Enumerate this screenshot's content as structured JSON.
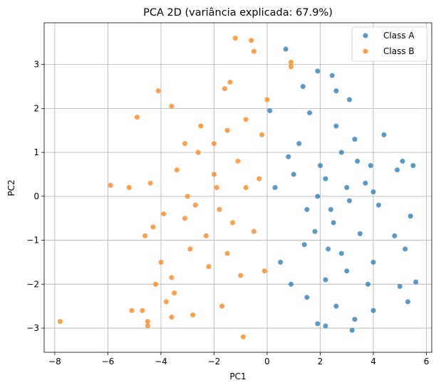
{
  "chart_data": {
    "type": "scatter",
    "title": "PCA 2D (variância explicada: 67.9%)",
    "xlabel": "PC1",
    "ylabel": "PC2",
    "xlim": [
      -8.4,
      6.2
    ],
    "ylim": [
      -3.55,
      3.95
    ],
    "xticks": [
      -8,
      -6,
      -4,
      -2,
      0,
      2,
      4,
      6
    ],
    "yticks": [
      -3,
      -2,
      -1,
      0,
      1,
      2,
      3
    ],
    "grid": true,
    "legend_position": "top-right",
    "series": [
      {
        "name": "Class A",
        "color": "#1f77b4",
        "points": [
          [
            0.7,
            3.35
          ],
          [
            1.9,
            2.85
          ],
          [
            2.45,
            2.75
          ],
          [
            1.35,
            2.5
          ],
          [
            2.6,
            2.4
          ],
          [
            3.1,
            2.2
          ],
          [
            0.1,
            1.95
          ],
          [
            1.6,
            1.9
          ],
          [
            4.4,
            1.4
          ],
          [
            3.3,
            1.3
          ],
          [
            2.8,
            1.0
          ],
          [
            5.1,
            0.8
          ],
          [
            5.5,
            0.7
          ],
          [
            4.9,
            0.6
          ],
          [
            1.0,
            0.5
          ],
          [
            2.2,
            0.4
          ],
          [
            3.7,
            0.3
          ],
          [
            4.0,
            0.1
          ],
          [
            3.1,
            -0.1
          ],
          [
            4.2,
            -0.2
          ],
          [
            5.4,
            -0.45
          ],
          [
            2.5,
            -0.6
          ],
          [
            1.8,
            -0.8
          ],
          [
            3.5,
            -0.85
          ],
          [
            4.8,
            -0.9
          ],
          [
            5.2,
            -1.2
          ],
          [
            4.0,
            -1.5
          ],
          [
            3.0,
            -1.7
          ],
          [
            2.2,
            -1.9
          ],
          [
            3.8,
            -2.0
          ],
          [
            5.0,
            -2.05
          ],
          [
            5.6,
            -1.95
          ],
          [
            1.5,
            -2.3
          ],
          [
            2.6,
            -2.5
          ],
          [
            4.0,
            -2.6
          ],
          [
            5.3,
            -2.4
          ],
          [
            3.3,
            -2.8
          ],
          [
            1.9,
            -2.9
          ],
          [
            3.2,
            -3.05
          ],
          [
            2.2,
            -2.95
          ],
          [
            0.8,
            0.9
          ],
          [
            1.2,
            1.2
          ],
          [
            2.0,
            0.7
          ],
          [
            2.6,
            1.6
          ],
          [
            1.5,
            -0.3
          ],
          [
            2.3,
            -1.2
          ],
          [
            3.0,
            0.2
          ],
          [
            0.5,
            -1.5
          ],
          [
            0.9,
            -2.0
          ],
          [
            1.4,
            -1.1
          ],
          [
            2.8,
            -1.3
          ],
          [
            3.4,
            0.8
          ],
          [
            1.9,
            0.0
          ],
          [
            2.4,
            -0.3
          ],
          [
            0.3,
            0.2
          ],
          [
            3.9,
            0.7
          ]
        ]
      },
      {
        "name": "Class B",
        "color": "#ff7f0e",
        "points": [
          [
            -1.2,
            3.6
          ],
          [
            -0.6,
            3.55
          ],
          [
            -0.5,
            3.3
          ],
          [
            0.9,
            3.05
          ],
          [
            -1.4,
            2.6
          ],
          [
            -1.6,
            2.45
          ],
          [
            0.9,
            2.95
          ],
          [
            -4.1,
            2.4
          ],
          [
            -3.6,
            2.05
          ],
          [
            -4.9,
            1.8
          ],
          [
            -5.2,
            0.2
          ],
          [
            -4.4,
            0.3
          ],
          [
            -5.9,
            0.25
          ],
          [
            -3.1,
            1.2
          ],
          [
            -2.5,
            1.6
          ],
          [
            -1.5,
            1.5
          ],
          [
            -0.8,
            1.75
          ],
          [
            0.0,
            2.2
          ],
          [
            -2.0,
            0.5
          ],
          [
            -3.0,
            0.0
          ],
          [
            -3.9,
            -0.4
          ],
          [
            -4.3,
            -0.7
          ],
          [
            -4.6,
            -0.9
          ],
          [
            -4.0,
            -1.5
          ],
          [
            -3.6,
            -1.85
          ],
          [
            -4.2,
            -2.0
          ],
          [
            -3.5,
            -2.2
          ],
          [
            -3.8,
            -2.4
          ],
          [
            -5.1,
            -2.6
          ],
          [
            -4.7,
            -2.6
          ],
          [
            -3.6,
            -2.75
          ],
          [
            -2.8,
            -2.7
          ],
          [
            -4.5,
            -2.85
          ],
          [
            -4.5,
            -2.95
          ],
          [
            -1.7,
            -2.5
          ],
          [
            -0.9,
            -3.2
          ],
          [
            -7.8,
            -2.85
          ],
          [
            -1.0,
            -1.8
          ],
          [
            -0.1,
            -1.7
          ],
          [
            -0.5,
            -0.8
          ],
          [
            -1.8,
            -0.3
          ],
          [
            -2.3,
            -0.9
          ],
          [
            -2.9,
            -1.2
          ],
          [
            -1.1,
            0.8
          ],
          [
            -0.3,
            0.4
          ],
          [
            -2.6,
            1.0
          ],
          [
            -3.4,
            0.6
          ],
          [
            -1.5,
            -1.3
          ],
          [
            -0.8,
            0.2
          ],
          [
            -2.0,
            1.2
          ],
          [
            -1.3,
            -0.6
          ],
          [
            -3.1,
            -0.5
          ],
          [
            -2.2,
            -1.6
          ],
          [
            -0.2,
            1.4
          ],
          [
            -1.9,
            0.2
          ],
          [
            -2.7,
            -0.2
          ]
        ]
      }
    ]
  }
}
